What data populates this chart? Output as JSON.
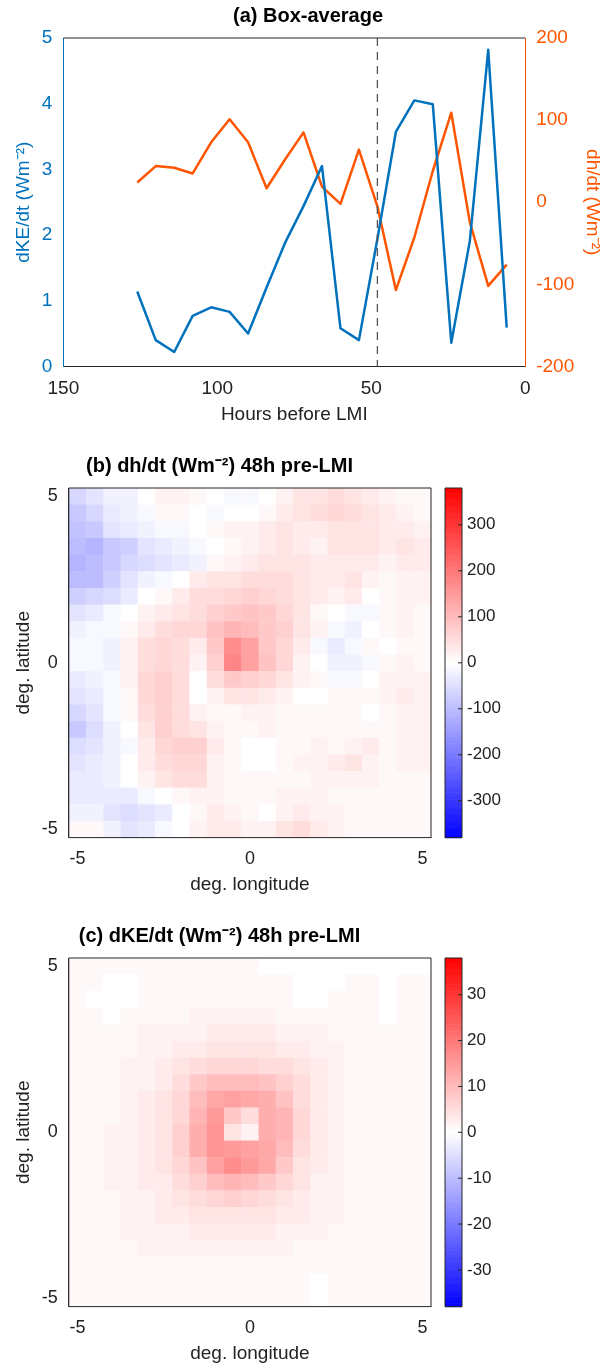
{
  "chart_data": [
    {
      "type": "line",
      "title": "(a) Box-average",
      "xlabel": "Hours before LMI",
      "ylabel": "dKE/dt (Wm⁻²)",
      "y2label": "dh/dt (Wm⁻²)",
      "x": [
        126,
        120,
        114,
        108,
        102,
        96,
        90,
        84,
        78,
        72,
        66,
        60,
        54,
        48,
        42,
        36,
        30,
        24,
        18,
        12,
        6
      ],
      "series": [
        {
          "color": "#0072bd",
          "values": [
            1.14,
            0.4,
            0.22,
            0.77,
            0.9,
            0.83,
            0.5,
            1.2,
            1.88,
            2.44,
            3.05,
            0.58,
            0.4,
            1.94,
            3.57,
            4.05,
            3.99,
            0.36,
            1.9,
            4.82,
            0.59
          ]
        },
        {
          "color": "#ff5500",
          "axis": "y2",
          "values": [
            24,
            44,
            42,
            35,
            73,
            101,
            73,
            17,
            52,
            85,
            19,
            -2,
            64,
            -5,
            -107,
            -43,
            38,
            109,
            -24,
            -102,
            -76
          ]
        }
      ],
      "xlim": [
        150,
        0
      ],
      "xticks": [
        150,
        100,
        50,
        0
      ],
      "ylim": [
        0,
        5
      ],
      "yticks": [
        0,
        1,
        2,
        3,
        4,
        5
      ],
      "y2lim": [
        -200,
        200
      ],
      "y2ticks": [
        -200,
        -100,
        0,
        100,
        200
      ],
      "ref_lines": [
        {
          "axis": "x",
          "value": 48,
          "color": "#555555",
          "line_style": "dashed"
        }
      ],
      "marker": "none",
      "line_style": "solid",
      "grid": false,
      "legend": false
    },
    {
      "type": "heatmap",
      "title": "(b) dh/dt (Wm⁻²) 48h pre-LMI",
      "xlabel": "deg. longitude",
      "ylabel": "deg. latitude",
      "categories": [
        "-5",
        null,
        null,
        null,
        null,
        null,
        null,
        null,
        null,
        null,
        "0",
        null,
        null,
        null,
        null,
        null,
        null,
        null,
        null,
        null,
        "5"
      ],
      "y_categories": [
        "5",
        null,
        null,
        null,
        null,
        null,
        null,
        null,
        null,
        null,
        "0",
        null,
        null,
        null,
        null,
        null,
        null,
        null,
        null,
        null,
        "-5"
      ],
      "cells": [
        [
          -60,
          -40,
          -20,
          -20,
          0,
          20,
          20,
          10,
          0,
          -10,
          -10,
          0,
          20,
          40,
          40,
          50,
          40,
          30,
          20,
          10,
          10
        ],
        [
          -80,
          -60,
          -30,
          -20,
          -10,
          10,
          10,
          0,
          -10,
          0,
          0,
          10,
          30,
          40,
          50,
          60,
          50,
          40,
          30,
          20,
          10
        ],
        [
          -90,
          -80,
          -40,
          -30,
          -20,
          -10,
          -10,
          0,
          10,
          20,
          20,
          30,
          40,
          30,
          30,
          40,
          40,
          40,
          30,
          30,
          20
        ],
        [
          -100,
          -110,
          -80,
          -70,
          -40,
          -30,
          -20,
          -10,
          0,
          10,
          20,
          30,
          40,
          30,
          20,
          40,
          40,
          40,
          30,
          40,
          30
        ],
        [
          -110,
          -100,
          -80,
          -60,
          -50,
          -40,
          -30,
          -20,
          10,
          20,
          30,
          40,
          40,
          40,
          30,
          30,
          30,
          30,
          20,
          30,
          30
        ],
        [
          -100,
          -100,
          -70,
          -40,
          -20,
          -10,
          0,
          30,
          40,
          40,
          50,
          50,
          50,
          40,
          30,
          30,
          40,
          20,
          10,
          20,
          20
        ],
        [
          -70,
          -60,
          -50,
          -30,
          0,
          10,
          30,
          50,
          50,
          60,
          70,
          60,
          50,
          40,
          30,
          20,
          30,
          0,
          10,
          20,
          20
        ],
        [
          -40,
          -30,
          -10,
          0,
          20,
          30,
          40,
          50,
          70,
          80,
          90,
          80,
          60,
          40,
          10,
          0,
          -10,
          -10,
          10,
          20,
          10
        ],
        [
          -20,
          -10,
          -10,
          10,
          30,
          50,
          60,
          60,
          90,
          110,
          100,
          80,
          70,
          40,
          20,
          -10,
          -20,
          0,
          10,
          20,
          10
        ],
        [
          -10,
          -10,
          -20,
          20,
          50,
          60,
          50,
          30,
          80,
          170,
          140,
          80,
          60,
          30,
          -10,
          -30,
          -10,
          10,
          0,
          10,
          10
        ],
        [
          -10,
          -10,
          -20,
          20,
          50,
          60,
          50,
          20,
          70,
          180,
          140,
          90,
          60,
          20,
          0,
          -20,
          -20,
          -10,
          10,
          20,
          10
        ],
        [
          -30,
          -20,
          -10,
          20,
          60,
          70,
          50,
          0,
          50,
          80,
          70,
          60,
          40,
          20,
          10,
          -10,
          -10,
          0,
          20,
          20,
          20
        ],
        [
          -40,
          -30,
          -10,
          10,
          60,
          70,
          50,
          0,
          20,
          40,
          40,
          30,
          20,
          0,
          0,
          10,
          10,
          10,
          20,
          30,
          20
        ],
        [
          -60,
          -40,
          -10,
          10,
          50,
          70,
          50,
          20,
          10,
          10,
          20,
          20,
          10,
          10,
          10,
          10,
          10,
          0,
          10,
          20,
          20
        ],
        [
          -80,
          -50,
          -20,
          0,
          40,
          70,
          50,
          40,
          20,
          10,
          10,
          20,
          10,
          10,
          10,
          10,
          10,
          10,
          10,
          20,
          20
        ],
        [
          -50,
          -40,
          -20,
          -10,
          30,
          60,
          70,
          70,
          30,
          10,
          0,
          0,
          10,
          10,
          20,
          10,
          20,
          30,
          10,
          20,
          20
        ],
        [
          -40,
          -30,
          -20,
          0,
          30,
          50,
          60,
          60,
          20,
          10,
          0,
          0,
          10,
          20,
          20,
          30,
          40,
          20,
          10,
          20,
          20
        ],
        [
          -30,
          -30,
          -20,
          0,
          20,
          40,
          50,
          50,
          20,
          10,
          10,
          10,
          10,
          10,
          20,
          20,
          20,
          20,
          10,
          10,
          10
        ],
        [
          -30,
          -30,
          -30,
          -30,
          -10,
          0,
          10,
          20,
          20,
          10,
          10,
          10,
          20,
          20,
          20,
          10,
          10,
          10,
          10,
          10,
          10
        ],
        [
          -20,
          -20,
          -40,
          -50,
          -40,
          -30,
          0,
          10,
          30,
          20,
          10,
          0,
          20,
          30,
          20,
          20,
          10,
          10,
          10,
          10,
          10
        ],
        [
          10,
          10,
          -20,
          -40,
          -30,
          -10,
          0,
          20,
          30,
          30,
          20,
          20,
          40,
          50,
          30,
          20,
          10,
          10,
          10,
          10,
          10
        ]
      ],
      "clim": [
        -380,
        380
      ],
      "cticks": [
        -300,
        -200,
        -100,
        0,
        100,
        200,
        300
      ]
    },
    {
      "type": "heatmap",
      "title": "(c) dKE/dt (Wm⁻²) 48h pre-LMI",
      "xlabel": "deg. longitude",
      "ylabel": "deg. latitude",
      "categories": [
        "-5",
        null,
        null,
        null,
        null,
        null,
        null,
        null,
        null,
        null,
        "0",
        null,
        null,
        null,
        null,
        null,
        null,
        null,
        null,
        null,
        "5"
      ],
      "y_categories": [
        "5",
        null,
        null,
        null,
        null,
        null,
        null,
        null,
        null,
        null,
        "0",
        null,
        null,
        null,
        null,
        null,
        null,
        null,
        null,
        null,
        "-5"
      ],
      "cells": [
        [
          1,
          1,
          1,
          1,
          1,
          1,
          1,
          1,
          1,
          1,
          1,
          0,
          0,
          0,
          0,
          0,
          0,
          0,
          0,
          0,
          0
        ],
        [
          1,
          1,
          0,
          0,
          1,
          1,
          1,
          1,
          1,
          1,
          1,
          1,
          1,
          0,
          0,
          0,
          1,
          1,
          0,
          1,
          1
        ],
        [
          1,
          0,
          0,
          0,
          1,
          1,
          1,
          1,
          1,
          1,
          1,
          1,
          1,
          0,
          0,
          1,
          1,
          1,
          0,
          1,
          1
        ],
        [
          1,
          1,
          0,
          1,
          1,
          1,
          1,
          2,
          2,
          2,
          2,
          2,
          1,
          1,
          1,
          1,
          1,
          1,
          0,
          1,
          1
        ],
        [
          1,
          1,
          1,
          1,
          2,
          2,
          2,
          2,
          3,
          3,
          3,
          3,
          2,
          2,
          2,
          1,
          1,
          1,
          1,
          1,
          1
        ],
        [
          1,
          1,
          1,
          1,
          2,
          2,
          3,
          3,
          4,
          4,
          4,
          4,
          3,
          3,
          2,
          2,
          1,
          1,
          1,
          1,
          1
        ],
        [
          1,
          1,
          1,
          2,
          2,
          3,
          4,
          5,
          6,
          6,
          6,
          5,
          5,
          4,
          3,
          2,
          1,
          1,
          1,
          1,
          1
        ],
        [
          1,
          1,
          1,
          2,
          2,
          3,
          5,
          8,
          10,
          10,
          10,
          9,
          7,
          5,
          3,
          2,
          1,
          1,
          1,
          1,
          1
        ],
        [
          1,
          1,
          1,
          2,
          3,
          4,
          6,
          10,
          13,
          14,
          13,
          12,
          9,
          5,
          3,
          2,
          1,
          1,
          1,
          1,
          1
        ],
        [
          1,
          1,
          1,
          2,
          3,
          4,
          6,
          11,
          15,
          8,
          5,
          12,
          11,
          6,
          3,
          2,
          1,
          1,
          1,
          1,
          1
        ],
        [
          1,
          1,
          2,
          2,
          3,
          4,
          7,
          12,
          16,
          4,
          2,
          12,
          11,
          6,
          3,
          2,
          1,
          1,
          1,
          1,
          1
        ],
        [
          1,
          1,
          2,
          2,
          3,
          4,
          7,
          12,
          16,
          15,
          14,
          13,
          10,
          5,
          3,
          2,
          1,
          1,
          1,
          1,
          1
        ],
        [
          1,
          1,
          2,
          2,
          3,
          4,
          6,
          9,
          14,
          17,
          15,
          13,
          8,
          4,
          3,
          2,
          1,
          1,
          1,
          1,
          1
        ],
        [
          1,
          1,
          2,
          2,
          3,
          3,
          5,
          7,
          10,
          11,
          10,
          8,
          6,
          4,
          2,
          2,
          1,
          1,
          1,
          1,
          1
        ],
        [
          1,
          1,
          1,
          2,
          2,
          3,
          4,
          5,
          6,
          7,
          6,
          5,
          4,
          3,
          2,
          2,
          1,
          1,
          1,
          1,
          1
        ],
        [
          1,
          1,
          1,
          2,
          2,
          3,
          3,
          4,
          4,
          4,
          4,
          4,
          3,
          3,
          2,
          2,
          1,
          1,
          1,
          1,
          1
        ],
        [
          1,
          1,
          1,
          2,
          2,
          2,
          2,
          3,
          3,
          3,
          3,
          3,
          2,
          2,
          2,
          1,
          1,
          1,
          1,
          1,
          1
        ],
        [
          1,
          1,
          1,
          1,
          2,
          2,
          2,
          2,
          2,
          2,
          2,
          2,
          2,
          1,
          1,
          1,
          1,
          1,
          1,
          1,
          1
        ],
        [
          1,
          1,
          1,
          1,
          1,
          1,
          1,
          1,
          1,
          1,
          1,
          1,
          1,
          1,
          1,
          1,
          1,
          1,
          1,
          1,
          1
        ],
        [
          1,
          1,
          1,
          1,
          1,
          1,
          1,
          1,
          1,
          1,
          1,
          1,
          1,
          1,
          0,
          1,
          1,
          1,
          1,
          1,
          1
        ],
        [
          1,
          1,
          1,
          1,
          1,
          1,
          1,
          1,
          1,
          1,
          1,
          1,
          1,
          1,
          0,
          1,
          1,
          1,
          1,
          1,
          1
        ]
      ],
      "clim": [
        -38,
        38
      ],
      "cticks": [
        -30,
        -20,
        -10,
        0,
        10,
        20,
        30
      ]
    }
  ]
}
